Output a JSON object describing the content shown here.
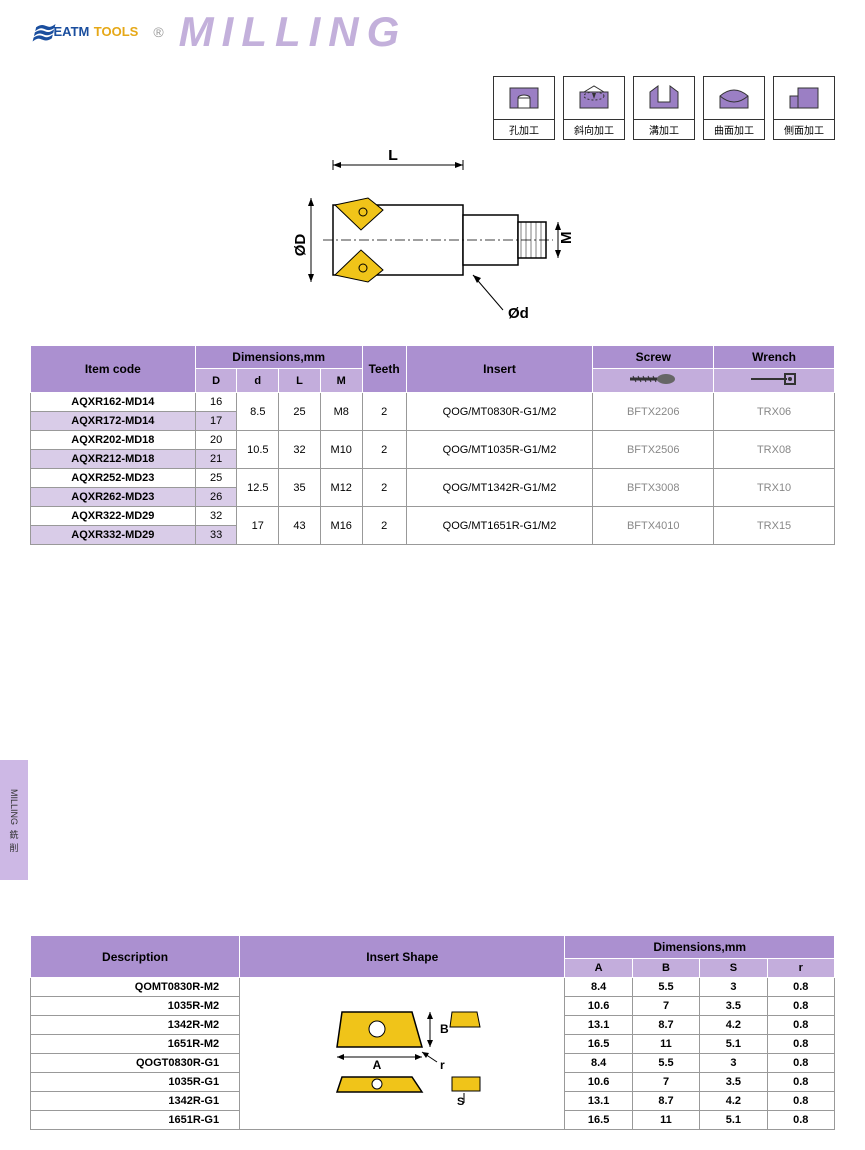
{
  "header": {
    "logo_brand1": "EATM",
    "logo_brand2": "TOOLS",
    "title": "MILLING",
    "registered": "®"
  },
  "machining_icons": [
    {
      "label": "孔加工",
      "shape": "hole"
    },
    {
      "label": "斜向加工",
      "shape": "ramp"
    },
    {
      "label": "溝加工",
      "shape": "slot"
    },
    {
      "label": "曲面加工",
      "shape": "curve"
    },
    {
      "label": "側面加工",
      "shape": "side"
    }
  ],
  "diagram": {
    "labels": {
      "L": "L",
      "D": "ØD",
      "d": "Ød",
      "M": "M"
    }
  },
  "side_tab": {
    "en": "MILLING",
    "cn1": "銑",
    "cn2": "削"
  },
  "main_table": {
    "headers": {
      "item_code": "Item code",
      "dimensions": "Dimensions,mm",
      "D": "D",
      "d": "d",
      "L": "L",
      "M": "M",
      "teeth": "Teeth",
      "insert": "Insert",
      "screw": "Screw",
      "wrench": "Wrench"
    },
    "groups": [
      {
        "rows": [
          {
            "code": "AQXR162-MD14",
            "D": "16"
          },
          {
            "code": "AQXR172-MD14",
            "D": "17",
            "alt": true
          }
        ],
        "d": "8.5",
        "L": "25",
        "M": "M8",
        "teeth": "2",
        "insert": "QOG/MT0830R-G1/M2",
        "screw": "BFTX2206",
        "wrench": "TRX06"
      },
      {
        "rows": [
          {
            "code": "AQXR202-MD18",
            "D": "20"
          },
          {
            "code": "AQXR212-MD18",
            "D": "21",
            "alt": true
          }
        ],
        "d": "10.5",
        "L": "32",
        "M": "M10",
        "teeth": "2",
        "insert": "QOG/MT1035R-G1/M2",
        "screw": "BFTX2506",
        "wrench": "TRX08"
      },
      {
        "rows": [
          {
            "code": "AQXR252-MD23",
            "D": "25"
          },
          {
            "code": "AQXR262-MD23",
            "D": "26",
            "alt": true
          }
        ],
        "d": "12.5",
        "L": "35",
        "M": "M12",
        "teeth": "2",
        "insert": "QOG/MT1342R-G1/M2",
        "screw": "BFTX3008",
        "wrench": "TRX10"
      },
      {
        "rows": [
          {
            "code": "AQXR322-MD29",
            "D": "32"
          },
          {
            "code": "AQXR332-MD29",
            "D": "33",
            "alt": true
          }
        ],
        "d": "17",
        "L": "43",
        "M": "M16",
        "teeth": "2",
        "insert": "QOG/MT1651R-G1/M2",
        "screw": "BFTX4010",
        "wrench": "TRX15"
      }
    ]
  },
  "insert_table": {
    "headers": {
      "description": "Description",
      "insert_shape": "Insert Shape",
      "dimensions": "Dimensions,mm",
      "A": "A",
      "B": "B",
      "S": "S",
      "r": "r"
    },
    "rows": [
      {
        "desc": "QOMT0830R-M2",
        "A": "8.4",
        "B": "5.5",
        "S": "3",
        "r": "0.8"
      },
      {
        "desc": "1035R-M2",
        "A": "10.6",
        "B": "7",
        "S": "3.5",
        "r": "0.8"
      },
      {
        "desc": "1342R-M2",
        "A": "13.1",
        "B": "8.7",
        "S": "4.2",
        "r": "0.8"
      },
      {
        "desc": "1651R-M2",
        "A": "16.5",
        "B": "11",
        "S": "5.1",
        "r": "0.8"
      },
      {
        "desc": "QOGT0830R-G1",
        "A": "8.4",
        "B": "5.5",
        "S": "3",
        "r": "0.8"
      },
      {
        "desc": "1035R-G1",
        "A": "10.6",
        "B": "7",
        "S": "3.5",
        "r": "0.8"
      },
      {
        "desc": "1342R-G1",
        "A": "13.1",
        "B": "8.7",
        "S": "4.2",
        "r": "0.8"
      },
      {
        "desc": "1651R-G1",
        "A": "16.5",
        "B": "11",
        "S": "5.1",
        "r": "0.8"
      }
    ],
    "shape_labels": {
      "A": "A",
      "B": "B",
      "S": "S",
      "r": "r"
    }
  },
  "colors": {
    "header_purple": "#ab90d0",
    "sub_purple": "#c3addc",
    "alt_row": "#d9cce8",
    "insert_yellow": "#f0c419",
    "title_gray": "#c3b0db",
    "logo_blue": "#1a4e9e",
    "logo_gold": "#e6a817"
  }
}
